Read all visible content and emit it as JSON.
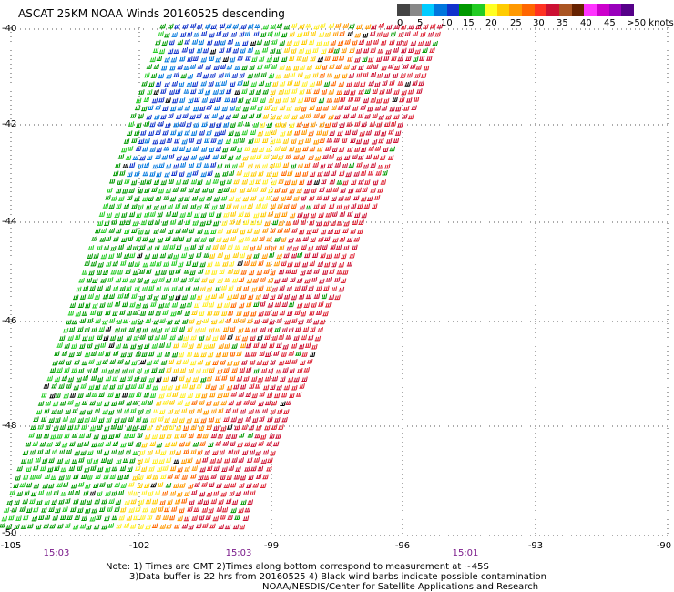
{
  "title": "ASCAT 25KM NOAA Winds 20160525 descending",
  "colorbar": {
    "colors": [
      "#444444",
      "#888888",
      "#00ccff",
      "#0077dd",
      "#1133cc",
      "#009900",
      "#22cc22",
      "#ffff22",
      "#ffcc00",
      "#ff9900",
      "#ff6600",
      "#ff3322",
      "#cc1133",
      "#aa5522",
      "#662200",
      "#ff33ff",
      "#cc00cc",
      "#9900bb",
      "#550088"
    ],
    "labels": [
      "0",
      "5",
      "10",
      "15",
      "20",
      "25",
      "30",
      "35",
      "40",
      "45",
      ">50 knots"
    ]
  },
  "lat_labels": [
    "-40",
    "-42",
    "-44",
    "-46",
    "-48",
    "-50"
  ],
  "lon_labels": [
    "-105",
    "-102",
    "-99",
    "-96",
    "-93",
    "-90"
  ],
  "time_labels": [
    "15:03",
    "15:03",
    "15:01"
  ],
  "notes": [
    "Note: 1) Times are GMT 2)Times along bottom correspond to measurement at ~45S",
    "3)Data buffer is 22 hrs from 20160525 4) Black wind barbs indicate possible contamination",
    "NOAA/NESDIS/Center for Satellite Applications and Research"
  ]
}
